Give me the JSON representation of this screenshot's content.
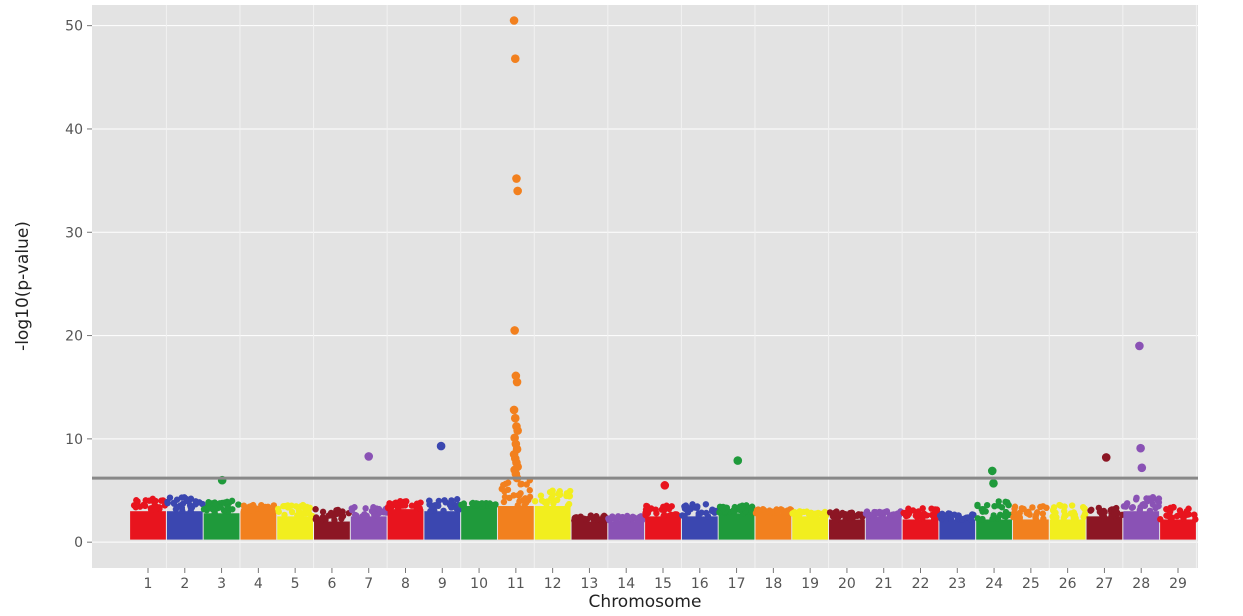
{
  "chart_data": {
    "type": "scatter",
    "title": "",
    "xlabel": "Chromosome",
    "ylabel": "-log10(p-value)",
    "ylim": [
      -2.5,
      52
    ],
    "yticks": [
      0,
      10,
      20,
      30,
      40,
      50
    ],
    "grid": true,
    "threshold": 6.2,
    "chromosomes": [
      {
        "label": "1",
        "color": "#e8141e",
        "base": 3.0,
        "peak": 4.2
      },
      {
        "label": "2",
        "color": "#3b47b0",
        "base": 3.0,
        "peak": 4.4
      },
      {
        "label": "3",
        "color": "#1f9a3b",
        "base": 2.8,
        "peak": 4.0
      },
      {
        "label": "4",
        "color": "#f2801e",
        "base": 3.0,
        "peak": 3.6
      },
      {
        "label": "5",
        "color": "#f2ee1e",
        "base": 2.5,
        "peak": 3.6
      },
      {
        "label": "6",
        "color": "#8c1624",
        "base": 2.0,
        "peak": 3.2
      },
      {
        "label": "7",
        "color": "#8a52b5",
        "base": 2.5,
        "peak": 3.4
      },
      {
        "label": "8",
        "color": "#e8141e",
        "base": 3.2,
        "peak": 4.0
      },
      {
        "label": "9",
        "color": "#3b47b0",
        "base": 3.0,
        "peak": 4.2
      },
      {
        "label": "10",
        "color": "#1f9a3b",
        "base": 3.5,
        "peak": 3.8
      },
      {
        "label": "11",
        "color": "#f2801e",
        "base": 3.5,
        "peak": 6.0
      },
      {
        "label": "12",
        "color": "#f2ee1e",
        "base": 3.5,
        "peak": 5.0
      },
      {
        "label": "13",
        "color": "#8c1624",
        "base": 2.0,
        "peak": 2.6
      },
      {
        "label": "14",
        "color": "#8a52b5",
        "base": 2.0,
        "peak": 2.6
      },
      {
        "label": "15",
        "color": "#e8141e",
        "base": 2.5,
        "peak": 3.6
      },
      {
        "label": "16",
        "color": "#3b47b0",
        "base": 2.5,
        "peak": 3.8
      },
      {
        "label": "17",
        "color": "#1f9a3b",
        "base": 2.8,
        "peak": 3.6
      },
      {
        "label": "18",
        "color": "#f2801e",
        "base": 2.8,
        "peak": 3.2
      },
      {
        "label": "19",
        "color": "#f2ee1e",
        "base": 2.5,
        "peak": 3.0
      },
      {
        "label": "20",
        "color": "#8c1624",
        "base": 2.2,
        "peak": 3.0
      },
      {
        "label": "21",
        "color": "#8a52b5",
        "base": 2.5,
        "peak": 3.0
      },
      {
        "label": "22",
        "color": "#e8141e",
        "base": 2.2,
        "peak": 3.4
      },
      {
        "label": "23",
        "color": "#3b47b0",
        "base": 2.2,
        "peak": 2.8
      },
      {
        "label": "24",
        "color": "#1f9a3b",
        "base": 2.2,
        "peak": 4.0
      },
      {
        "label": "25",
        "color": "#f2801e",
        "base": 2.2,
        "peak": 3.5
      },
      {
        "label": "26",
        "color": "#f2ee1e",
        "base": 2.2,
        "peak": 3.6
      },
      {
        "label": "27",
        "color": "#8c1624",
        "base": 2.5,
        "peak": 3.4
      },
      {
        "label": "28",
        "color": "#8a52b5",
        "base": 3.0,
        "peak": 4.5
      },
      {
        "label": "29",
        "color": "#e8141e",
        "base": 2.2,
        "peak": 3.5
      }
    ],
    "points": [
      {
        "chr": "11",
        "y": 50.5
      },
      {
        "chr": "11",
        "y": 46.8
      },
      {
        "chr": "11",
        "y": 35.2
      },
      {
        "chr": "11",
        "y": 34.0
      },
      {
        "chr": "11",
        "y": 20.5
      },
      {
        "chr": "11",
        "y": 16.1
      },
      {
        "chr": "11",
        "y": 15.5
      },
      {
        "chr": "11",
        "y": 12.8
      },
      {
        "chr": "11",
        "y": 12.0
      },
      {
        "chr": "11",
        "y": 11.2
      },
      {
        "chr": "11",
        "y": 10.8
      },
      {
        "chr": "11",
        "y": 10.1
      },
      {
        "chr": "11",
        "y": 9.5
      },
      {
        "chr": "11",
        "y": 9.0
      },
      {
        "chr": "11",
        "y": 8.5
      },
      {
        "chr": "11",
        "y": 8.1
      },
      {
        "chr": "11",
        "y": 7.7
      },
      {
        "chr": "11",
        "y": 7.3
      },
      {
        "chr": "11",
        "y": 7.0
      },
      {
        "chr": "11",
        "y": 6.6
      },
      {
        "chr": "11",
        "y": 6.2
      },
      {
        "chr": "28",
        "y": 19.0
      },
      {
        "chr": "28",
        "y": 9.1
      },
      {
        "chr": "28",
        "y": 7.2
      },
      {
        "chr": "27",
        "y": 8.2
      },
      {
        "chr": "9",
        "y": 9.3
      },
      {
        "chr": "7",
        "y": 8.3
      },
      {
        "chr": "17",
        "y": 7.9
      },
      {
        "chr": "24",
        "y": 6.9
      },
      {
        "chr": "24",
        "y": 5.7
      },
      {
        "chr": "3",
        "y": 6.0
      },
      {
        "chr": "15",
        "y": 5.5
      }
    ]
  }
}
